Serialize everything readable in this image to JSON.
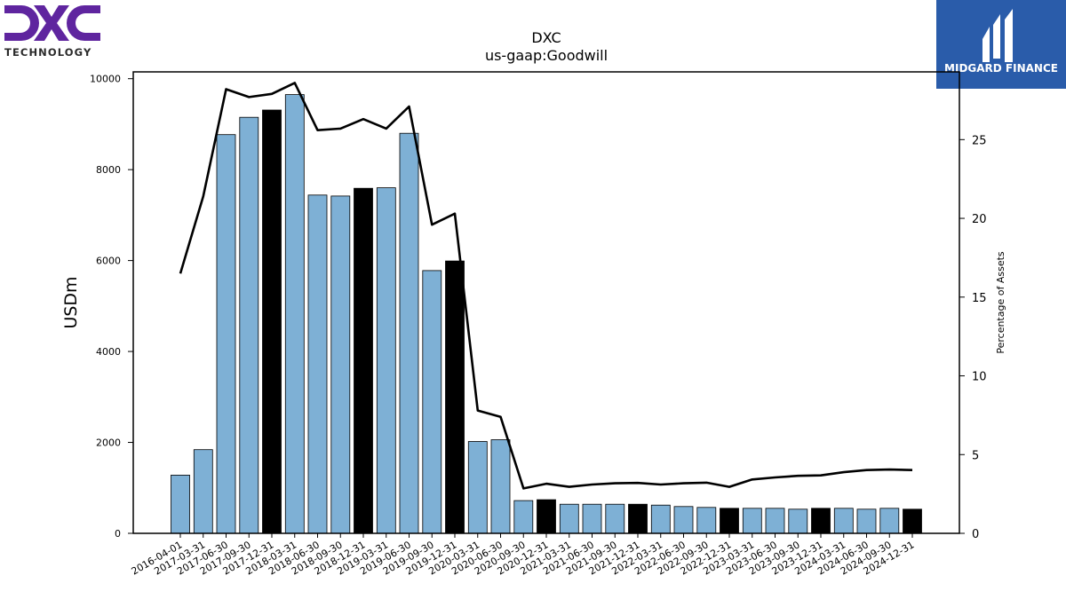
{
  "logos": {
    "left": {
      "brand": "DXC",
      "subtitle": "TECHNOLOGY",
      "color": "#5f259f"
    },
    "right": {
      "brand": "MIDGARD FINANCE",
      "color": "#2a5caa"
    }
  },
  "chart_data": {
    "type": "bar",
    "title": "DXC",
    "subtitle": "us-gaap:Goodwill",
    "ylabel": "USDm",
    "y2label": "Percentage of Assets",
    "ylim": [
      0,
      10150
    ],
    "y2lim": [
      0,
      29.3
    ],
    "yticks": [
      0,
      2000,
      4000,
      6000,
      8000,
      10000
    ],
    "y2ticks": [
      0,
      5,
      10,
      15,
      20,
      25
    ],
    "grid": false,
    "colors": {
      "bar": "#7eb0d5",
      "highlight_bar": "#000000",
      "line": "#000000"
    },
    "categories": [
      "2016-04-01",
      "2017-03-31",
      "2017-06-30",
      "2017-09-30",
      "2017-12-31",
      "2018-03-31",
      "2018-06-30",
      "2018-09-30",
      "2018-12-31",
      "2019-03-31",
      "2019-06-30",
      "2019-09-30",
      "2019-12-31",
      "2020-03-31",
      "2020-06-30",
      "2020-09-30",
      "2020-12-31",
      "2021-03-31",
      "2021-06-30",
      "2021-09-30",
      "2021-12-31",
      "2022-03-31",
      "2022-06-30",
      "2022-09-30",
      "2022-12-31",
      "2023-03-31",
      "2023-06-30",
      "2023-09-30",
      "2023-12-31",
      "2024-03-31",
      "2024-06-30",
      "2024-09-30",
      "2024-12-31"
    ],
    "series": [
      {
        "type": "bar",
        "values": [
          1280,
          1840,
          8770,
          9150,
          9310,
          9650,
          7440,
          7420,
          7590,
          7600,
          8800,
          5780,
          5990,
          2020,
          2060,
          720,
          740,
          640,
          640,
          640,
          640,
          620,
          590,
          570,
          550,
          550,
          550,
          530,
          550,
          550,
          530,
          550,
          530
        ],
        "highlight": [
          false,
          false,
          false,
          false,
          true,
          false,
          false,
          false,
          true,
          false,
          false,
          false,
          true,
          false,
          false,
          false,
          true,
          false,
          false,
          false,
          true,
          false,
          false,
          false,
          true,
          false,
          false,
          false,
          true,
          false,
          false,
          false,
          true
        ]
      },
      {
        "type": "line",
        "axis": "right",
        "values": [
          16.5,
          21.4,
          28.2,
          27.7,
          27.9,
          28.6,
          25.6,
          25.7,
          26.3,
          25.7,
          27.1,
          19.6,
          20.3,
          7.8,
          7.4,
          2.85,
          3.15,
          2.95,
          3.1,
          3.18,
          3.2,
          3.1,
          3.18,
          3.22,
          2.95,
          3.42,
          3.55,
          3.65,
          3.68,
          3.88,
          4.02,
          4.05,
          4.02
        ]
      }
    ]
  }
}
